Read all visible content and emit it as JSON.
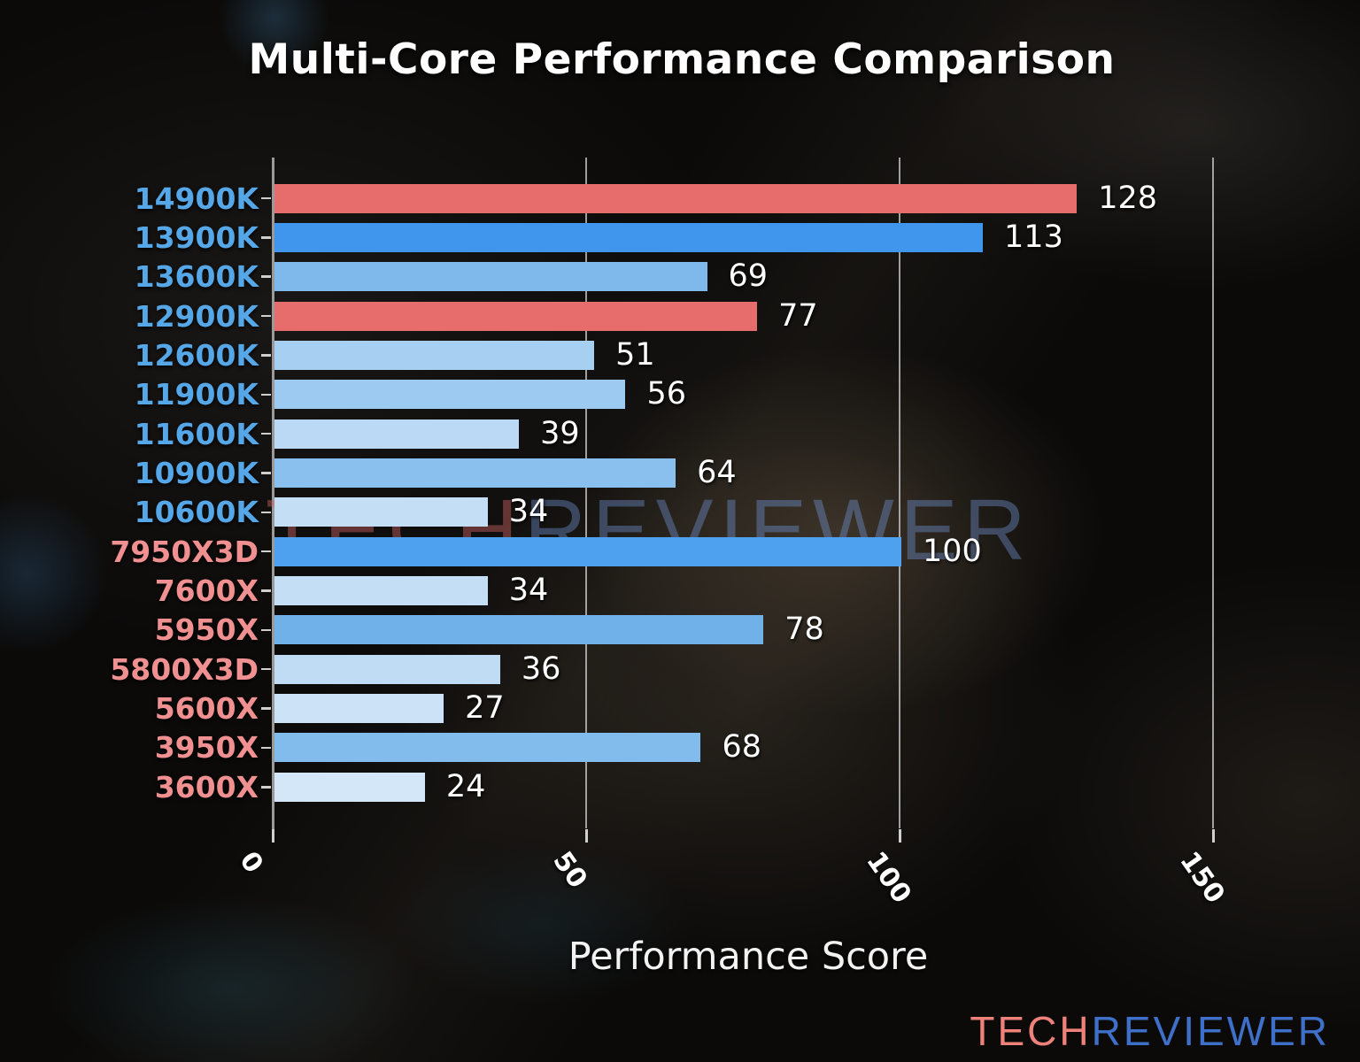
{
  "title": "Multi-Core Performance Comparison",
  "xlabel": "Performance Score",
  "watermark": {
    "part1": "TECH",
    "part2": "REVIEWER"
  },
  "logo": {
    "part1": "TECH",
    "part2": "REVIEWER"
  },
  "colors": {
    "intel_label": "#55a7e8",
    "amd_label": "#f09090",
    "red_bar": "#e76d6d",
    "strong_blue_bar": "#3f96ec",
    "value_text": "#ffffff",
    "gridline": "#c3c3c3",
    "spine": "#9a9a9a",
    "title_text": "#ffffff"
  },
  "chart_data": {
    "type": "bar",
    "orientation": "horizontal",
    "title": "Multi-Core Performance Comparison",
    "xlabel": "Performance Score",
    "ylabel": "",
    "xlim": [
      0,
      150
    ],
    "x_ticks": [
      0,
      50,
      100,
      150
    ],
    "grid": true,
    "legend": "none",
    "categories": [
      "14900K",
      "13900K",
      "13600K",
      "12900K",
      "12600K",
      "11900K",
      "11600K",
      "10900K",
      "10600K",
      "7950X3D",
      "7600X",
      "5950X",
      "5800X3D",
      "5600X",
      "3950X",
      "3600X"
    ],
    "values": [
      128,
      113,
      69,
      77,
      51,
      56,
      39,
      64,
      34,
      100,
      34,
      78,
      36,
      27,
      68,
      24
    ],
    "bar_colors": [
      "#e76d6d",
      "#3f96ec",
      "#7fb9ec",
      "#e76d6d",
      "#a6cff2",
      "#9ccaf1",
      "#bbd9f4",
      "#8ac0ee",
      "#c4def6",
      "#4da1ee",
      "#c4def6",
      "#70b1e9",
      "#c0dcf5",
      "#cce3f7",
      "#82bced",
      "#d3e7f8"
    ],
    "label_colors": [
      "#55a7e8",
      "#55a7e8",
      "#55a7e8",
      "#55a7e8",
      "#55a7e8",
      "#55a7e8",
      "#55a7e8",
      "#55a7e8",
      "#55a7e8",
      "#f09090",
      "#f09090",
      "#f09090",
      "#f09090",
      "#f09090",
      "#f09090",
      "#f09090"
    ]
  }
}
